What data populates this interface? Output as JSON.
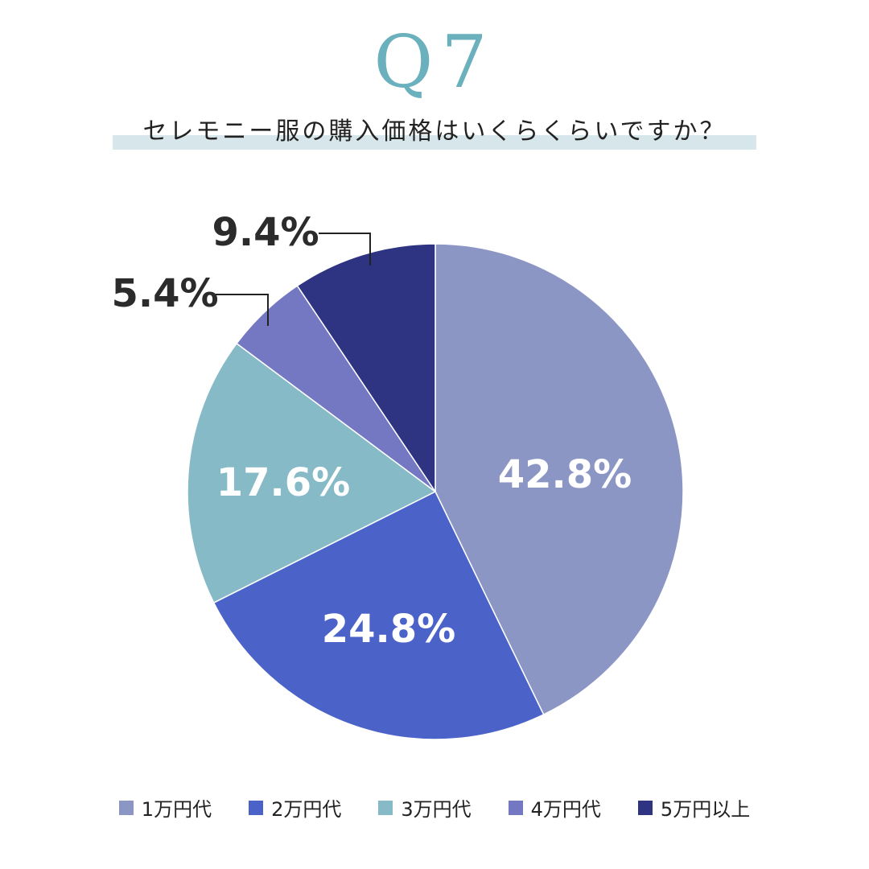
{
  "header": {
    "q_label": "Q7",
    "question": "セレモニー服の購入価格はいくらくらいですか？"
  },
  "chart_data": {
    "type": "pie",
    "categories": [
      "1万円代",
      "2万円代",
      "3万円代",
      "4万円代",
      "5万円以上"
    ],
    "values": [
      42.8,
      24.8,
      17.6,
      5.4,
      9.4
    ],
    "value_labels": [
      "42.8%",
      "24.8%",
      "17.6%",
      "5.4%",
      "9.4%"
    ],
    "colors": [
      "#8b96c4",
      "#4b63c9",
      "#86bac6",
      "#7478c3",
      "#2e3382"
    ],
    "start": "12 o'clock",
    "direction": "clockwise",
    "legend_position": "bottom"
  },
  "legend": {
    "items": [
      {
        "label": "1万円代",
        "color": "#8b96c4"
      },
      {
        "label": "2万円代",
        "color": "#4b63c9"
      },
      {
        "label": "3万円代",
        "color": "#86bac6"
      },
      {
        "label": "4万円代",
        "color": "#7478c3"
      },
      {
        "label": "5万円以上",
        "color": "#2e3382"
      }
    ]
  }
}
